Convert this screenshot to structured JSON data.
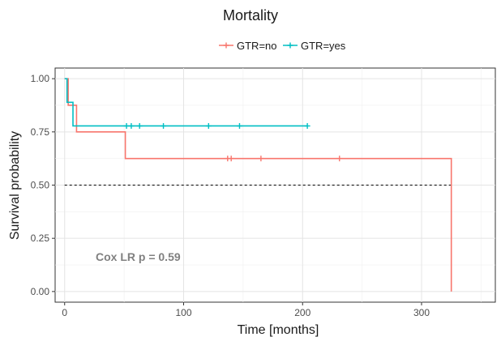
{
  "chart_data": {
    "type": "line",
    "title": "Mortality",
    "xlabel": "Time [months]",
    "ylabel": "Survival probability",
    "xlim": [
      -8,
      362
    ],
    "ylim": [
      -0.05,
      1.05
    ],
    "x_ticks": [
      0,
      100,
      200,
      300
    ],
    "y_ticks": [
      0.0,
      0.25,
      0.5,
      0.75,
      1.0
    ],
    "y_tick_labels": [
      "0.00",
      "0.25",
      "0.50",
      "0.75",
      "1.00"
    ],
    "grid": true,
    "legend_position": "top",
    "series": [
      {
        "name": "GTR=no",
        "color": "#F8766D",
        "steps": [
          [
            0,
            1.0
          ],
          [
            3,
            0.875
          ],
          [
            10,
            0.75
          ],
          [
            51,
            0.625
          ],
          [
            325,
            0.0
          ]
        ],
        "end": 325,
        "censored": [
          137,
          140,
          165,
          231
        ]
      },
      {
        "name": "GTR=yes",
        "color": "#00BFC4",
        "steps": [
          [
            0,
            1.0
          ],
          [
            2,
            0.889
          ],
          [
            7,
            0.778
          ]
        ],
        "end": 204,
        "censored": [
          52,
          56,
          63,
          83,
          121,
          147,
          204
        ]
      }
    ],
    "median_line": {
      "y": 0.5,
      "x_end": 325
    },
    "annotation": "Cox LR p = 0.59"
  },
  "legend": {
    "items": [
      {
        "label": "GTR=no",
        "color": "#F8766D"
      },
      {
        "label": "GTR=yes",
        "color": "#00BFC4"
      }
    ]
  }
}
